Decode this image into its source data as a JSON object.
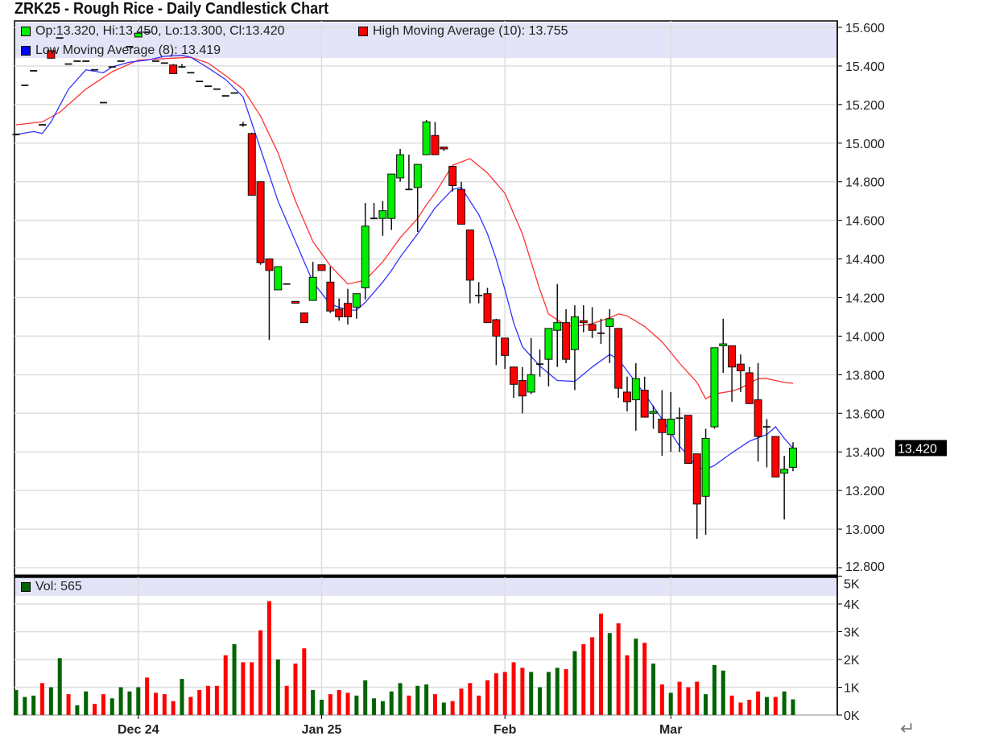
{
  "title": "ZRK25 - Rough Rice - Daily Candlestick Chart",
  "legend": {
    "ohlc_text": "Op:13.320, Hi:13.450, Lo:13.300, Cl:13.420",
    "high_ma_text": "High Moving Average (10): 13.755",
    "low_ma_text": "Low Moving Average (8): 13.419",
    "volume_text": "Vol: 565"
  },
  "colors": {
    "up": "#00ee00",
    "down": "#ff0000",
    "vol_up": "#006400",
    "vol_down": "#ff0000",
    "high_ma": "#ff3333",
    "low_ma": "#3333ff",
    "legend_bg": "#e4e4f8",
    "grid": "#dddddd"
  },
  "return_glyph": "↵",
  "chart_data": [
    {
      "type": "candlestick",
      "title": "ZRK25 - Rough Rice - Daily Candlestick Chart",
      "ylim": [
        12.8,
        15.6
      ],
      "y_ticks": [
        "15.600",
        "15.400",
        "15.200",
        "15.000",
        "14.800",
        "14.600",
        "14.400",
        "14.200",
        "14.000",
        "13.800",
        "13.600",
        "13.400",
        "13.200",
        "13.000",
        "12.800"
      ],
      "last_price_label": "13.420",
      "last_price": 13.42,
      "x_ticks": [
        {
          "label": "Dec 24",
          "index": 14
        },
        {
          "label": "Jan 25",
          "index": 35
        },
        {
          "label": "Feb",
          "index": 56
        },
        {
          "label": "Mar",
          "index": 75
        }
      ],
      "grid": true,
      "ohlc": [
        [
          15.045,
          15.05,
          15.04,
          15.045
        ],
        [
          15.3,
          15.3,
          15.3,
          15.3
        ],
        [
          15.375,
          15.375,
          15.375,
          15.375
        ],
        [
          15.095,
          15.095,
          15.095,
          15.095
        ],
        [
          15.48,
          15.48,
          15.44,
          15.44
        ],
        [
          15.545,
          15.545,
          15.545,
          15.545
        ],
        [
          15.41,
          15.41,
          15.41,
          15.41
        ],
        [
          15.425,
          15.425,
          15.425,
          15.425
        ],
        [
          15.425,
          15.425,
          15.425,
          15.425
        ],
        [
          15.38,
          15.38,
          15.38,
          15.38
        ],
        [
          15.21,
          15.21,
          15.21,
          15.21
        ],
        [
          15.395,
          15.395,
          15.395,
          15.395
        ],
        [
          15.425,
          15.425,
          15.425,
          15.425
        ],
        [
          15.5,
          15.5,
          15.5,
          15.5
        ],
        [
          15.55,
          15.575,
          15.55,
          15.57
        ],
        [
          15.575,
          15.575,
          15.575,
          15.575
        ],
        [
          15.425,
          15.425,
          15.425,
          15.425
        ],
        [
          15.415,
          15.415,
          15.415,
          15.415
        ],
        [
          15.405,
          15.41,
          15.36,
          15.36
        ],
        [
          15.395,
          15.41,
          15.39,
          15.395
        ],
        [
          15.365,
          15.365,
          15.365,
          15.365
        ],
        [
          15.32,
          15.32,
          15.32,
          15.32
        ],
        [
          15.295,
          15.295,
          15.295,
          15.295
        ],
        [
          15.28,
          15.28,
          15.28,
          15.28
        ],
        [
          15.245,
          15.245,
          15.245,
          15.245
        ],
        [
          15.26,
          15.26,
          15.26,
          15.26
        ],
        [
          15.095,
          15.11,
          15.085,
          15.095
        ],
        [
          15.05,
          15.055,
          14.73,
          14.73
        ],
        [
          14.8,
          14.8,
          14.37,
          14.38
        ],
        [
          14.4,
          14.4,
          13.98,
          14.34
        ],
        [
          14.24,
          14.36,
          14.24,
          14.36
        ],
        [
          14.27,
          14.27,
          14.27,
          14.27
        ],
        [
          14.18,
          14.18,
          14.17,
          14.17
        ],
        [
          14.12,
          14.12,
          14.07,
          14.07
        ],
        [
          14.185,
          14.385,
          14.185,
          14.305
        ],
        [
          14.37,
          14.37,
          14.34,
          14.34
        ],
        [
          14.28,
          14.36,
          14.12,
          14.13
        ],
        [
          14.14,
          14.195,
          14.08,
          14.1
        ],
        [
          14.17,
          14.245,
          14.06,
          14.1
        ],
        [
          14.15,
          14.22,
          14.09,
          14.22
        ],
        [
          14.25,
          14.69,
          14.19,
          14.57
        ],
        [
          14.61,
          14.69,
          14.61,
          14.61
        ],
        [
          14.61,
          14.7,
          14.52,
          14.65
        ],
        [
          14.61,
          14.84,
          14.55,
          14.84
        ],
        [
          14.82,
          14.97,
          14.8,
          14.94
        ],
        [
          14.76,
          14.94,
          14.76,
          14.76
        ],
        [
          14.77,
          14.89,
          14.54,
          14.89
        ],
        [
          14.94,
          15.12,
          14.94,
          15.11
        ],
        [
          15.04,
          15.11,
          14.94,
          14.94
        ],
        [
          14.98,
          14.98,
          14.96,
          14.97
        ],
        [
          14.88,
          14.88,
          14.75,
          14.78
        ],
        [
          14.76,
          14.8,
          14.58,
          14.58
        ],
        [
          14.55,
          14.55,
          14.17,
          14.29
        ],
        [
          14.21,
          14.28,
          14.17,
          14.21
        ],
        [
          14.22,
          14.25,
          14.07,
          14.07
        ],
        [
          14.085,
          14.09,
          13.85,
          14.0
        ],
        [
          13.99,
          13.99,
          13.83,
          13.9
        ],
        [
          13.84,
          13.84,
          13.68,
          13.75
        ],
        [
          13.77,
          13.84,
          13.6,
          13.69
        ],
        [
          13.71,
          13.99,
          13.7,
          13.8
        ],
        [
          13.855,
          13.93,
          13.79,
          13.855
        ],
        [
          13.88,
          14.04,
          13.74,
          14.04
        ],
        [
          14.03,
          14.27,
          13.84,
          14.07
        ],
        [
          14.07,
          14.14,
          13.86,
          13.88
        ],
        [
          13.93,
          14.16,
          13.72,
          14.1
        ],
        [
          14.08,
          14.16,
          14.02,
          14.07
        ],
        [
          14.06,
          14.15,
          13.99,
          14.03
        ],
        [
          14.015,
          14.09,
          13.96,
          14.015
        ],
        [
          14.05,
          14.14,
          13.86,
          14.09
        ],
        [
          14.04,
          14.04,
          13.68,
          13.73
        ],
        [
          13.71,
          13.79,
          13.61,
          13.66
        ],
        [
          13.67,
          13.86,
          13.51,
          13.78
        ],
        [
          13.72,
          13.79,
          13.58,
          13.58
        ],
        [
          13.6,
          13.64,
          13.52,
          13.61
        ],
        [
          13.57,
          13.72,
          13.38,
          13.5
        ],
        [
          13.49,
          13.71,
          13.4,
          13.57
        ],
        [
          13.575,
          13.63,
          13.4,
          13.57
        ],
        [
          13.59,
          13.59,
          13.34,
          13.34
        ],
        [
          13.39,
          13.39,
          12.95,
          13.13
        ],
        [
          13.17,
          13.52,
          12.97,
          13.47
        ],
        [
          13.53,
          13.94,
          13.52,
          13.94
        ],
        [
          13.95,
          14.09,
          13.81,
          13.96
        ],
        [
          13.95,
          13.95,
          13.66,
          13.84
        ],
        [
          13.855,
          13.905,
          13.71,
          13.82
        ],
        [
          13.81,
          13.84,
          13.65,
          13.65
        ],
        [
          13.67,
          13.86,
          13.35,
          13.48
        ],
        [
          13.53,
          13.57,
          13.32,
          13.53
        ],
        [
          13.48,
          13.48,
          13.27,
          13.27
        ],
        [
          13.29,
          13.38,
          13.05,
          13.31
        ],
        [
          13.32,
          13.45,
          13.3,
          13.42
        ]
      ],
      "series": [
        {
          "name": "High Moving Average (10)",
          "points": [
            [
              0,
              15.095
            ],
            [
              3,
              15.11
            ],
            [
              5,
              15.16
            ],
            [
              8,
              15.28
            ],
            [
              11,
              15.37
            ],
            [
              14,
              15.43
            ],
            [
              18,
              15.44
            ],
            [
              20,
              15.445
            ],
            [
              22,
              15.415
            ],
            [
              24,
              15.35
            ],
            [
              26,
              15.28
            ],
            [
              28,
              15.14
            ],
            [
              30,
              14.95
            ],
            [
              32,
              14.7
            ],
            [
              34,
              14.49
            ],
            [
              36,
              14.365
            ],
            [
              38,
              14.27
            ],
            [
              40,
              14.29
            ],
            [
              42,
              14.385
            ],
            [
              44,
              14.51
            ],
            [
              46,
              14.61
            ],
            [
              47,
              14.68
            ],
            [
              48,
              14.74
            ],
            [
              50,
              14.885
            ],
            [
              52,
              14.92
            ],
            [
              54,
              14.845
            ],
            [
              56,
              14.74
            ],
            [
              57,
              14.635
            ],
            [
              58,
              14.53
            ],
            [
              59,
              14.385
            ],
            [
              60,
              14.24
            ],
            [
              61,
              14.115
            ],
            [
              63,
              14.055
            ],
            [
              64,
              14.05
            ],
            [
              66,
              14.065
            ],
            [
              68,
              14.095
            ],
            [
              69,
              14.115
            ],
            [
              70,
              14.105
            ],
            [
              72,
              14.05
            ],
            [
              74,
              13.97
            ],
            [
              76,
              13.86
            ],
            [
              78,
              13.76
            ],
            [
              79,
              13.675
            ],
            [
              80,
              13.7
            ],
            [
              82,
              13.715
            ],
            [
              83,
              13.73
            ],
            [
              85,
              13.78
            ],
            [
              86,
              13.78
            ],
            [
              88,
              13.76
            ],
            [
              89,
              13.755
            ]
          ]
        },
        {
          "name": "Low Moving Average (8)",
          "points": [
            [
              0,
              15.045
            ],
            [
              2,
              15.06
            ],
            [
              3,
              15.05
            ],
            [
              4,
              15.11
            ],
            [
              6,
              15.28
            ],
            [
              8,
              15.38
            ],
            [
              10,
              15.365
            ],
            [
              11,
              15.395
            ],
            [
              13,
              15.42
            ],
            [
              15,
              15.43
            ],
            [
              17,
              15.45
            ],
            [
              19,
              15.455
            ],
            [
              20,
              15.445
            ],
            [
              22,
              15.39
            ],
            [
              24,
              15.33
            ],
            [
              26,
              15.24
            ],
            [
              28,
              14.97
            ],
            [
              30,
              14.7
            ],
            [
              32,
              14.49
            ],
            [
              34,
              14.28
            ],
            [
              36,
              14.165
            ],
            [
              38,
              14.135
            ],
            [
              39,
              14.135
            ],
            [
              40,
              14.175
            ],
            [
              42,
              14.28
            ],
            [
              43,
              14.34
            ],
            [
              44,
              14.41
            ],
            [
              46,
              14.53
            ],
            [
              48,
              14.665
            ],
            [
              50,
              14.76
            ],
            [
              51,
              14.77
            ],
            [
              52,
              14.7
            ],
            [
              53,
              14.63
            ],
            [
              54,
              14.53
            ],
            [
              55,
              14.4
            ],
            [
              56,
              14.24
            ],
            [
              57,
              14.07
            ],
            [
              58,
              13.945
            ],
            [
              60,
              13.845
            ],
            [
              62,
              13.77
            ],
            [
              64,
              13.765
            ],
            [
              66,
              13.84
            ],
            [
              68,
              13.905
            ],
            [
              69,
              13.88
            ],
            [
              70,
              13.82
            ],
            [
              72,
              13.7
            ],
            [
              74,
              13.57
            ],
            [
              76,
              13.43
            ],
            [
              77,
              13.38
            ],
            [
              78,
              13.32
            ],
            [
              79,
              13.31
            ],
            [
              80,
              13.33
            ],
            [
              82,
              13.395
            ],
            [
              84,
              13.455
            ],
            [
              86,
              13.49
            ],
            [
              87,
              13.53
            ],
            [
              88,
              13.47
            ],
            [
              89,
              13.419
            ]
          ]
        }
      ]
    },
    {
      "type": "bar",
      "ylim": [
        0,
        5000
      ],
      "y_ticks": [
        "5K",
        "4K",
        "3K",
        "2K",
        "1K",
        "0K"
      ],
      "legend": "Vol: 565",
      "values": [
        900,
        650,
        700,
        1150,
        1000,
        2050,
        750,
        350,
        850,
        400,
        750,
        600,
        1000,
        850,
        1000,
        1350,
        800,
        750,
        500,
        1300,
        650,
        900,
        1050,
        1050,
        2150,
        2550,
        1900,
        1900,
        3050,
        4100,
        2000,
        1050,
        1850,
        2400,
        900,
        550,
        750,
        900,
        800,
        700,
        1250,
        600,
        500,
        850,
        1150,
        700,
        1050,
        1100,
        750,
        450,
        500,
        950,
        1150,
        700,
        1250,
        1500,
        1550,
        1900,
        1700,
        1550,
        1000,
        1550,
        1700,
        1650,
        2300,
        2550,
        2800,
        3650,
        2950,
        3300,
        2150,
        2750,
        2600,
        1850,
        1100,
        800,
        1200,
        1000,
        1200,
        750,
        1800,
        1600,
        700,
        450,
        550,
        850,
        650,
        650,
        850,
        565
      ],
      "direction": [
        "up",
        "up",
        "up",
        "down",
        "up",
        "up",
        "down",
        "up",
        "up",
        "down",
        "down",
        "up",
        "up",
        "up",
        "up",
        "down",
        "down",
        "down",
        "down",
        "up",
        "down",
        "down",
        "down",
        "down",
        "down",
        "up",
        "down",
        "down",
        "down",
        "down",
        "up",
        "down",
        "down",
        "down",
        "up",
        "up",
        "down",
        "down",
        "down",
        "up",
        "up",
        "up",
        "up",
        "up",
        "up",
        "down",
        "up",
        "up",
        "down",
        "up",
        "down",
        "down",
        "down",
        "down",
        "down",
        "down",
        "down",
        "down",
        "down",
        "up",
        "up",
        "up",
        "up",
        "down",
        "up",
        "down",
        "down",
        "down",
        "up",
        "down",
        "down",
        "up",
        "down",
        "up",
        "down",
        "up",
        "down",
        "down",
        "down",
        "up",
        "up",
        "up",
        "down",
        "down",
        "down",
        "down",
        "up",
        "down",
        "up",
        "up"
      ]
    }
  ]
}
